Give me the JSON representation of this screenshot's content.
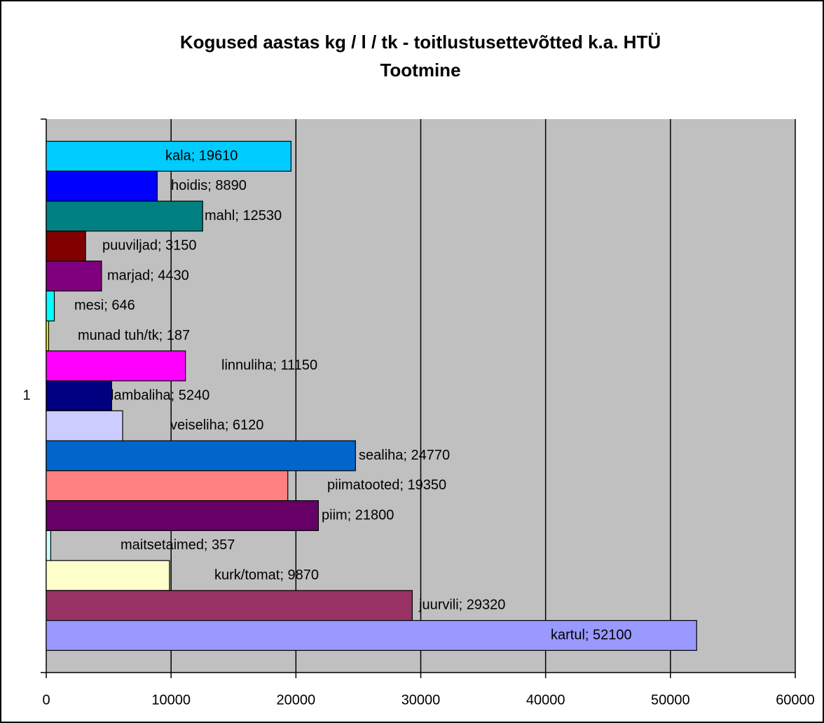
{
  "chart_data": {
    "type": "bar",
    "orientation": "horizontal",
    "title": [
      "Kogused aastas kg / l / tk - toitlustusettevõtted k.a. HTÜ",
      "Tootmine"
    ],
    "categories": [
      "1"
    ],
    "xlim": [
      0,
      60000
    ],
    "xticks": [
      0,
      10000,
      20000,
      30000,
      40000,
      50000,
      60000
    ],
    "grid": true,
    "series": [
      {
        "name": "kala",
        "color": "#00ccff",
        "values": [
          19610
        ],
        "value_labels": [
          "kala; 19610"
        ]
      },
      {
        "name": "hoidis",
        "color": "#0000ff",
        "values": [
          8890
        ],
        "value_labels": [
          "hoidis; 8890"
        ]
      },
      {
        "name": "mahl",
        "color": "#008080",
        "values": [
          12530
        ],
        "value_labels": [
          "mahl; 12530"
        ]
      },
      {
        "name": "puuviljad",
        "color": "#800000",
        "values": [
          3150
        ],
        "value_labels": [
          "puuviljad; 3150"
        ]
      },
      {
        "name": "marjad",
        "color": "#800080",
        "values": [
          4430
        ],
        "value_labels": [
          "marjad; 4430"
        ]
      },
      {
        "name": "mesi",
        "color": "#00ffff",
        "values": [
          646
        ],
        "value_labels": [
          "mesi; 646"
        ]
      },
      {
        "name": "munad tuh/tk",
        "color": "#ffff00",
        "values": [
          187
        ],
        "value_labels": [
          "munad tuh/tk; 187"
        ]
      },
      {
        "name": "linnuliha",
        "color": "#ff00ff",
        "values": [
          11150
        ],
        "value_labels": [
          "linnuliha; 11150"
        ]
      },
      {
        "name": "lambaliha",
        "color": "#000080",
        "values": [
          5240
        ],
        "value_labels": [
          "lambaliha; 5240"
        ]
      },
      {
        "name": "veiseliha",
        "color": "#ccccff",
        "values": [
          6120
        ],
        "value_labels": [
          "veiseliha; 6120"
        ]
      },
      {
        "name": "sealiha",
        "color": "#0066cc",
        "values": [
          24770
        ],
        "value_labels": [
          "sealiha; 24770"
        ]
      },
      {
        "name": "piimatooted",
        "color": "#ff8080",
        "values": [
          19350
        ],
        "value_labels": [
          "piimatooted; 19350"
        ]
      },
      {
        "name": "piim",
        "color": "#660066",
        "values": [
          21800
        ],
        "value_labels": [
          "piim; 21800"
        ]
      },
      {
        "name": "maitsetaimed",
        "color": "#ccffff",
        "values": [
          357
        ],
        "value_labels": [
          "maitsetaimed; 357"
        ]
      },
      {
        "name": "kurk/tomat",
        "color": "#ffffcc",
        "values": [
          9870
        ],
        "value_labels": [
          "kurk/tomat; 9870"
        ]
      },
      {
        "name": "juurvili",
        "color": "#993366",
        "values": [
          29320
        ],
        "value_labels": [
          "juurvili; 29320"
        ]
      },
      {
        "name": "kartul",
        "color": "#9999ff",
        "values": [
          52100
        ],
        "value_labels": [
          "kartul; 52100"
        ]
      }
    ]
  }
}
